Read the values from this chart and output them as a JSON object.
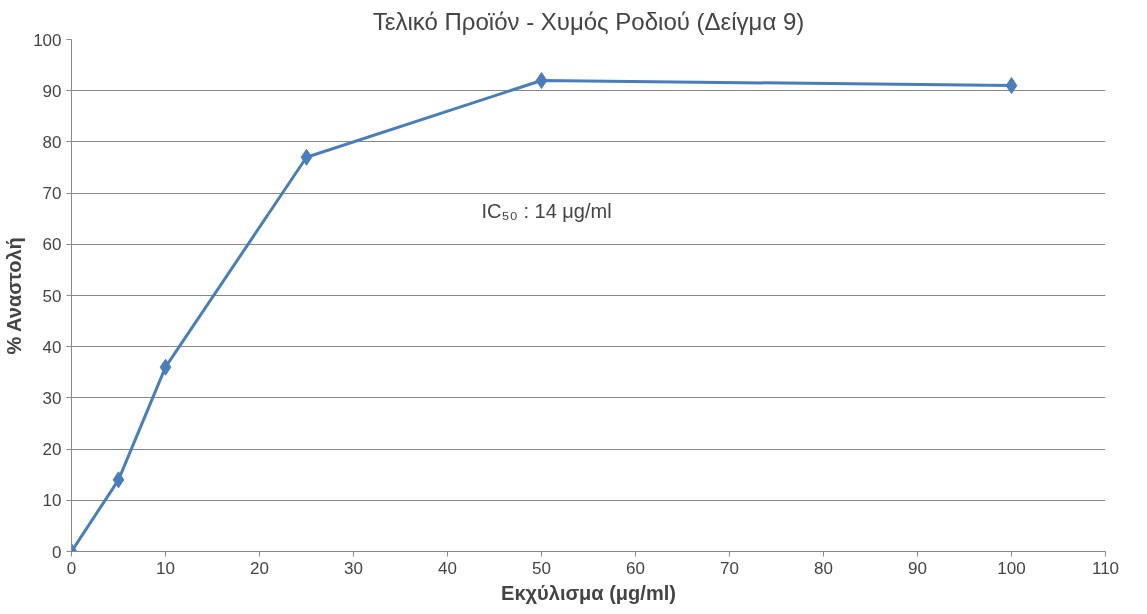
{
  "chart_data": {
    "type": "line",
    "title": "Τελικό Προϊόν - Χυμός Ροδιού (Δείγμα 9)",
    "xlabel": "Εκχύλισμα (μg/ml)",
    "ylabel": "% Αναστολή",
    "x": [
      0,
      5,
      10,
      25,
      50,
      100
    ],
    "series": [
      {
        "color": "#4a7ebb",
        "values": [
          0,
          14,
          36,
          77,
          92,
          91
        ]
      }
    ],
    "xlim": [
      0,
      110
    ],
    "xticks": [
      0,
      10,
      20,
      30,
      40,
      50,
      60,
      70,
      80,
      90,
      100,
      110
    ],
    "ylim": [
      0,
      100
    ],
    "yticks": [
      0,
      10,
      20,
      30,
      40,
      50,
      60,
      70,
      80,
      90,
      100
    ],
    "grid": "y",
    "marker": "diamond",
    "line_style": "solid",
    "annotations": [
      "IC₅₀ : 14 μg/ml"
    ]
  }
}
